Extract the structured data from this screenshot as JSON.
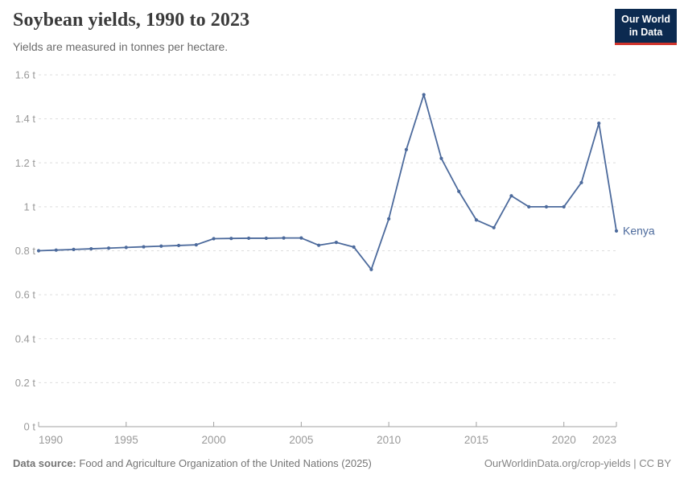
{
  "header": {
    "title": "Soybean yields, 1990 to 2023",
    "subtitle": "Yields are measured in tonnes per hectare.",
    "logo": {
      "line1": "Our World",
      "line2": "in Data",
      "bg_color": "#0c2a50",
      "accent_color": "#d0342c",
      "text_color": "#ffffff"
    }
  },
  "footer": {
    "source_label": "Data source:",
    "source_text": "Food and Agriculture Organization of the United Nations (2025)",
    "credit": "OurWorldinData.org/crop-yields | CC BY"
  },
  "chart_data": {
    "type": "line",
    "title": "Soybean yields, 1990 to 2023",
    "subtitle": "Yields are measured in tonnes per hectare.",
    "unit": "tonnes per hectare",
    "x": [
      1990,
      1991,
      1992,
      1993,
      1994,
      1995,
      1996,
      1997,
      1998,
      1999,
      2000,
      2001,
      2002,
      2003,
      2004,
      2005,
      2006,
      2007,
      2008,
      2009,
      2010,
      2011,
      2012,
      2013,
      2014,
      2015,
      2016,
      2017,
      2018,
      2019,
      2020,
      2021,
      2022,
      2023
    ],
    "series": [
      {
        "name": "Kenya",
        "color": "#4c6a9c",
        "values": [
          0.8,
          0.803,
          0.806,
          0.809,
          0.812,
          0.815,
          0.818,
          0.821,
          0.824,
          0.827,
          0.855,
          0.856,
          0.857,
          0.857,
          0.858,
          0.858,
          0.825,
          0.838,
          0.817,
          0.715,
          0.945,
          1.26,
          1.51,
          1.22,
          1.07,
          0.94,
          0.905,
          1.05,
          1.0,
          1.0,
          1.0,
          1.11,
          1.38,
          0.89
        ]
      }
    ],
    "xlim": [
      1990,
      2023
    ],
    "ylim": [
      0,
      1.6
    ],
    "xticks": [
      1990,
      1995,
      2000,
      2005,
      2010,
      2015,
      2020,
      2023
    ],
    "yticks": [
      0,
      0.2,
      0.4,
      0.6,
      0.8,
      1,
      1.2,
      1.4,
      1.6
    ],
    "ytick_labels": [
      "0 t",
      "0.2 t",
      "0.4 t",
      "0.6 t",
      "0.8 t",
      "1 t",
      "1.2 t",
      "1.4 t",
      "1.6 t"
    ],
    "grid": "horizontal-dashed",
    "legend_position": "end-of-line-label",
    "colors": {
      "grid": "#dddddd",
      "axis": "#a1a1a1",
      "tick_label": "#999999"
    }
  }
}
